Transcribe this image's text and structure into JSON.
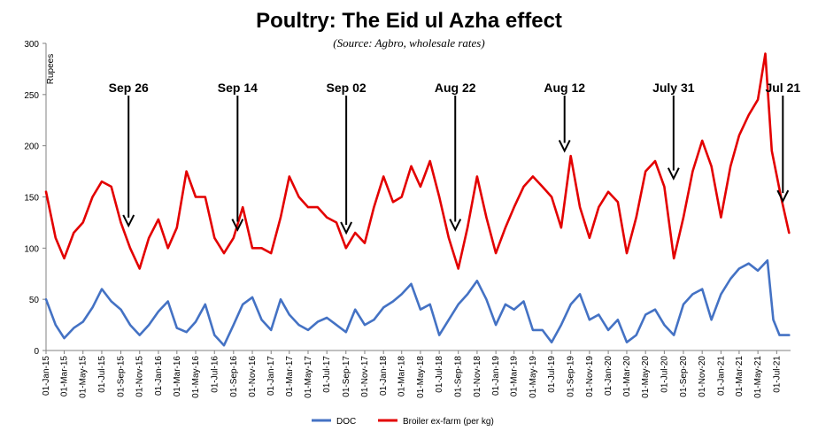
{
  "chart_data": {
    "type": "line",
    "title": "Poultry: The Eid ul Azha effect",
    "subtitle": "(Source:  Agbro, wholesale rates)",
    "ylabel": "Rupees",
    "xlabel": "",
    "ylim": [
      0,
      300
    ],
    "yticks": [
      0,
      50,
      100,
      150,
      200,
      250,
      300
    ],
    "grid": false,
    "legend_position": "bottom",
    "x_tick_labels": [
      "01-Jan-15",
      "01-Mar-15",
      "01-May-15",
      "01-Jul-15",
      "01-Sep-15",
      "01-Nov-15",
      "01-Jan-16",
      "01-Mar-16",
      "01-May-16",
      "01-Jul-16",
      "01-Sep-16",
      "01-Nov-16",
      "01-Jan-17",
      "01-Mar-17",
      "01-May-17",
      "01-Jul-17",
      "01-Sep-17",
      "01-Nov-17",
      "01-Jan-18",
      "01-Mar-18",
      "01-May-18",
      "01-Jul-18",
      "01-Sep-18",
      "01-Nov-18",
      "01-Jan-19",
      "01-Mar-19",
      "01-May-19",
      "01-Jul-19",
      "01-Sep-19",
      "01-Nov-19",
      "01-Jan-20",
      "01-Mar-20",
      "01-May-20",
      "01-Jul-20",
      "01-Sep-20",
      "01-Nov-20",
      "01-Jan-21",
      "01-Mar-21",
      "01-May-21",
      "01-Jul-21"
    ],
    "x_start": "2015-01-01",
    "x_end": "2021-08-15",
    "series": [
      {
        "name": "DOC",
        "color": "#4472C4",
        "points": [
          [
            "2015-01-01",
            50
          ],
          [
            "2015-02-01",
            25
          ],
          [
            "2015-03-01",
            12
          ],
          [
            "2015-04-01",
            22
          ],
          [
            "2015-05-01",
            28
          ],
          [
            "2015-06-01",
            42
          ],
          [
            "2015-07-01",
            60
          ],
          [
            "2015-08-01",
            48
          ],
          [
            "2015-09-01",
            40
          ],
          [
            "2015-10-01",
            25
          ],
          [
            "2015-11-01",
            15
          ],
          [
            "2015-12-01",
            25
          ],
          [
            "2016-01-01",
            38
          ],
          [
            "2016-02-01",
            48
          ],
          [
            "2016-03-01",
            22
          ],
          [
            "2016-04-01",
            18
          ],
          [
            "2016-05-01",
            28
          ],
          [
            "2016-06-01",
            45
          ],
          [
            "2016-07-01",
            15
          ],
          [
            "2016-08-01",
            5
          ],
          [
            "2016-09-01",
            25
          ],
          [
            "2016-10-01",
            45
          ],
          [
            "2016-11-01",
            52
          ],
          [
            "2016-12-01",
            30
          ],
          [
            "2017-01-01",
            20
          ],
          [
            "2017-02-01",
            50
          ],
          [
            "2017-03-01",
            35
          ],
          [
            "2017-04-01",
            25
          ],
          [
            "2017-05-01",
            20
          ],
          [
            "2017-06-01",
            28
          ],
          [
            "2017-07-01",
            32
          ],
          [
            "2017-08-01",
            25
          ],
          [
            "2017-09-01",
            18
          ],
          [
            "2017-10-01",
            40
          ],
          [
            "2017-11-01",
            25
          ],
          [
            "2017-12-01",
            30
          ],
          [
            "2018-01-01",
            42
          ],
          [
            "2018-02-01",
            48
          ],
          [
            "2018-03-01",
            55
          ],
          [
            "2018-04-01",
            65
          ],
          [
            "2018-05-01",
            40
          ],
          [
            "2018-06-01",
            45
          ],
          [
            "2018-07-01",
            15
          ],
          [
            "2018-08-01",
            30
          ],
          [
            "2018-09-01",
            45
          ],
          [
            "2018-10-01",
            55
          ],
          [
            "2018-11-01",
            68
          ],
          [
            "2018-12-01",
            50
          ],
          [
            "2019-01-01",
            25
          ],
          [
            "2019-02-01",
            45
          ],
          [
            "2019-03-01",
            40
          ],
          [
            "2019-04-01",
            48
          ],
          [
            "2019-05-01",
            20
          ],
          [
            "2019-06-01",
            20
          ],
          [
            "2019-07-01",
            8
          ],
          [
            "2019-08-01",
            25
          ],
          [
            "2019-09-01",
            45
          ],
          [
            "2019-10-01",
            55
          ],
          [
            "2019-11-01",
            30
          ],
          [
            "2019-12-01",
            35
          ],
          [
            "2020-01-01",
            20
          ],
          [
            "2020-02-01",
            30
          ],
          [
            "2020-03-01",
            8
          ],
          [
            "2020-04-01",
            15
          ],
          [
            "2020-05-01",
            35
          ],
          [
            "2020-06-01",
            40
          ],
          [
            "2020-07-01",
            25
          ],
          [
            "2020-08-01",
            15
          ],
          [
            "2020-09-01",
            45
          ],
          [
            "2020-10-01",
            55
          ],
          [
            "2020-11-01",
            60
          ],
          [
            "2020-12-01",
            30
          ],
          [
            "2021-01-01",
            55
          ],
          [
            "2021-02-01",
            70
          ],
          [
            "2021-03-01",
            80
          ],
          [
            "2021-04-01",
            85
          ],
          [
            "2021-05-01",
            78
          ],
          [
            "2021-06-01",
            88
          ],
          [
            "2021-06-20",
            30
          ],
          [
            "2021-07-10",
            15
          ],
          [
            "2021-08-10",
            15
          ]
        ]
      },
      {
        "name": "Broiler ex-farm (per kg)",
        "color": "#E30000",
        "points": [
          [
            "2015-01-01",
            155
          ],
          [
            "2015-02-01",
            110
          ],
          [
            "2015-03-01",
            90
          ],
          [
            "2015-04-01",
            115
          ],
          [
            "2015-05-01",
            125
          ],
          [
            "2015-06-01",
            150
          ],
          [
            "2015-07-01",
            165
          ],
          [
            "2015-08-01",
            160
          ],
          [
            "2015-09-01",
            125
          ],
          [
            "2015-10-01",
            100
          ],
          [
            "2015-11-01",
            80
          ],
          [
            "2015-12-01",
            110
          ],
          [
            "2016-01-01",
            128
          ],
          [
            "2016-02-01",
            100
          ],
          [
            "2016-03-01",
            120
          ],
          [
            "2016-04-01",
            175
          ],
          [
            "2016-05-01",
            150
          ],
          [
            "2016-06-01",
            150
          ],
          [
            "2016-07-01",
            110
          ],
          [
            "2016-08-01",
            95
          ],
          [
            "2016-09-01",
            110
          ],
          [
            "2016-10-01",
            140
          ],
          [
            "2016-11-01",
            100
          ],
          [
            "2016-12-01",
            100
          ],
          [
            "2017-01-01",
            95
          ],
          [
            "2017-02-01",
            130
          ],
          [
            "2017-03-01",
            170
          ],
          [
            "2017-04-01",
            150
          ],
          [
            "2017-05-01",
            140
          ],
          [
            "2017-06-01",
            140
          ],
          [
            "2017-07-01",
            130
          ],
          [
            "2017-08-01",
            125
          ],
          [
            "2017-09-01",
            100
          ],
          [
            "2017-10-01",
            115
          ],
          [
            "2017-11-01",
            105
          ],
          [
            "2017-12-01",
            140
          ],
          [
            "2018-01-01",
            170
          ],
          [
            "2018-02-01",
            145
          ],
          [
            "2018-03-01",
            150
          ],
          [
            "2018-04-01",
            180
          ],
          [
            "2018-05-01",
            160
          ],
          [
            "2018-06-01",
            185
          ],
          [
            "2018-07-01",
            150
          ],
          [
            "2018-08-01",
            110
          ],
          [
            "2018-09-01",
            80
          ],
          [
            "2018-10-01",
            120
          ],
          [
            "2018-11-01",
            170
          ],
          [
            "2018-12-01",
            130
          ],
          [
            "2019-01-01",
            95
          ],
          [
            "2019-02-01",
            120
          ],
          [
            "2019-03-01",
            140
          ],
          [
            "2019-04-01",
            160
          ],
          [
            "2019-05-01",
            170
          ],
          [
            "2019-06-01",
            160
          ],
          [
            "2019-07-01",
            150
          ],
          [
            "2019-08-01",
            120
          ],
          [
            "2019-09-01",
            190
          ],
          [
            "2019-10-01",
            140
          ],
          [
            "2019-11-01",
            110
          ],
          [
            "2019-12-01",
            140
          ],
          [
            "2020-01-01",
            155
          ],
          [
            "2020-02-01",
            145
          ],
          [
            "2020-03-01",
            95
          ],
          [
            "2020-04-01",
            130
          ],
          [
            "2020-05-01",
            175
          ],
          [
            "2020-06-01",
            185
          ],
          [
            "2020-07-01",
            160
          ],
          [
            "2020-08-01",
            90
          ],
          [
            "2020-09-01",
            130
          ],
          [
            "2020-10-01",
            175
          ],
          [
            "2020-11-01",
            205
          ],
          [
            "2020-12-01",
            180
          ],
          [
            "2021-01-01",
            130
          ],
          [
            "2021-02-01",
            180
          ],
          [
            "2021-03-01",
            210
          ],
          [
            "2021-04-01",
            230
          ],
          [
            "2021-05-01",
            245
          ],
          [
            "2021-05-25",
            290
          ],
          [
            "2021-06-15",
            195
          ],
          [
            "2021-07-15",
            150
          ],
          [
            "2021-08-10",
            115
          ]
        ]
      }
    ],
    "annotations": [
      {
        "label": "Sep 26",
        "date": "2015-09-26",
        "y": 122
      },
      {
        "label": "Sep 14",
        "date": "2016-09-14",
        "y": 118
      },
      {
        "label": "Sep 02",
        "date": "2017-09-02",
        "y": 115
      },
      {
        "label": "Aug 22",
        "date": "2018-08-22",
        "y": 118
      },
      {
        "label": "Aug 12",
        "date": "2019-08-12",
        "y": 195
      },
      {
        "label": "July 31",
        "date": "2020-07-31",
        "y": 168
      },
      {
        "label": "Jul 21",
        "date": "2021-07-21",
        "y": 146
      }
    ]
  }
}
